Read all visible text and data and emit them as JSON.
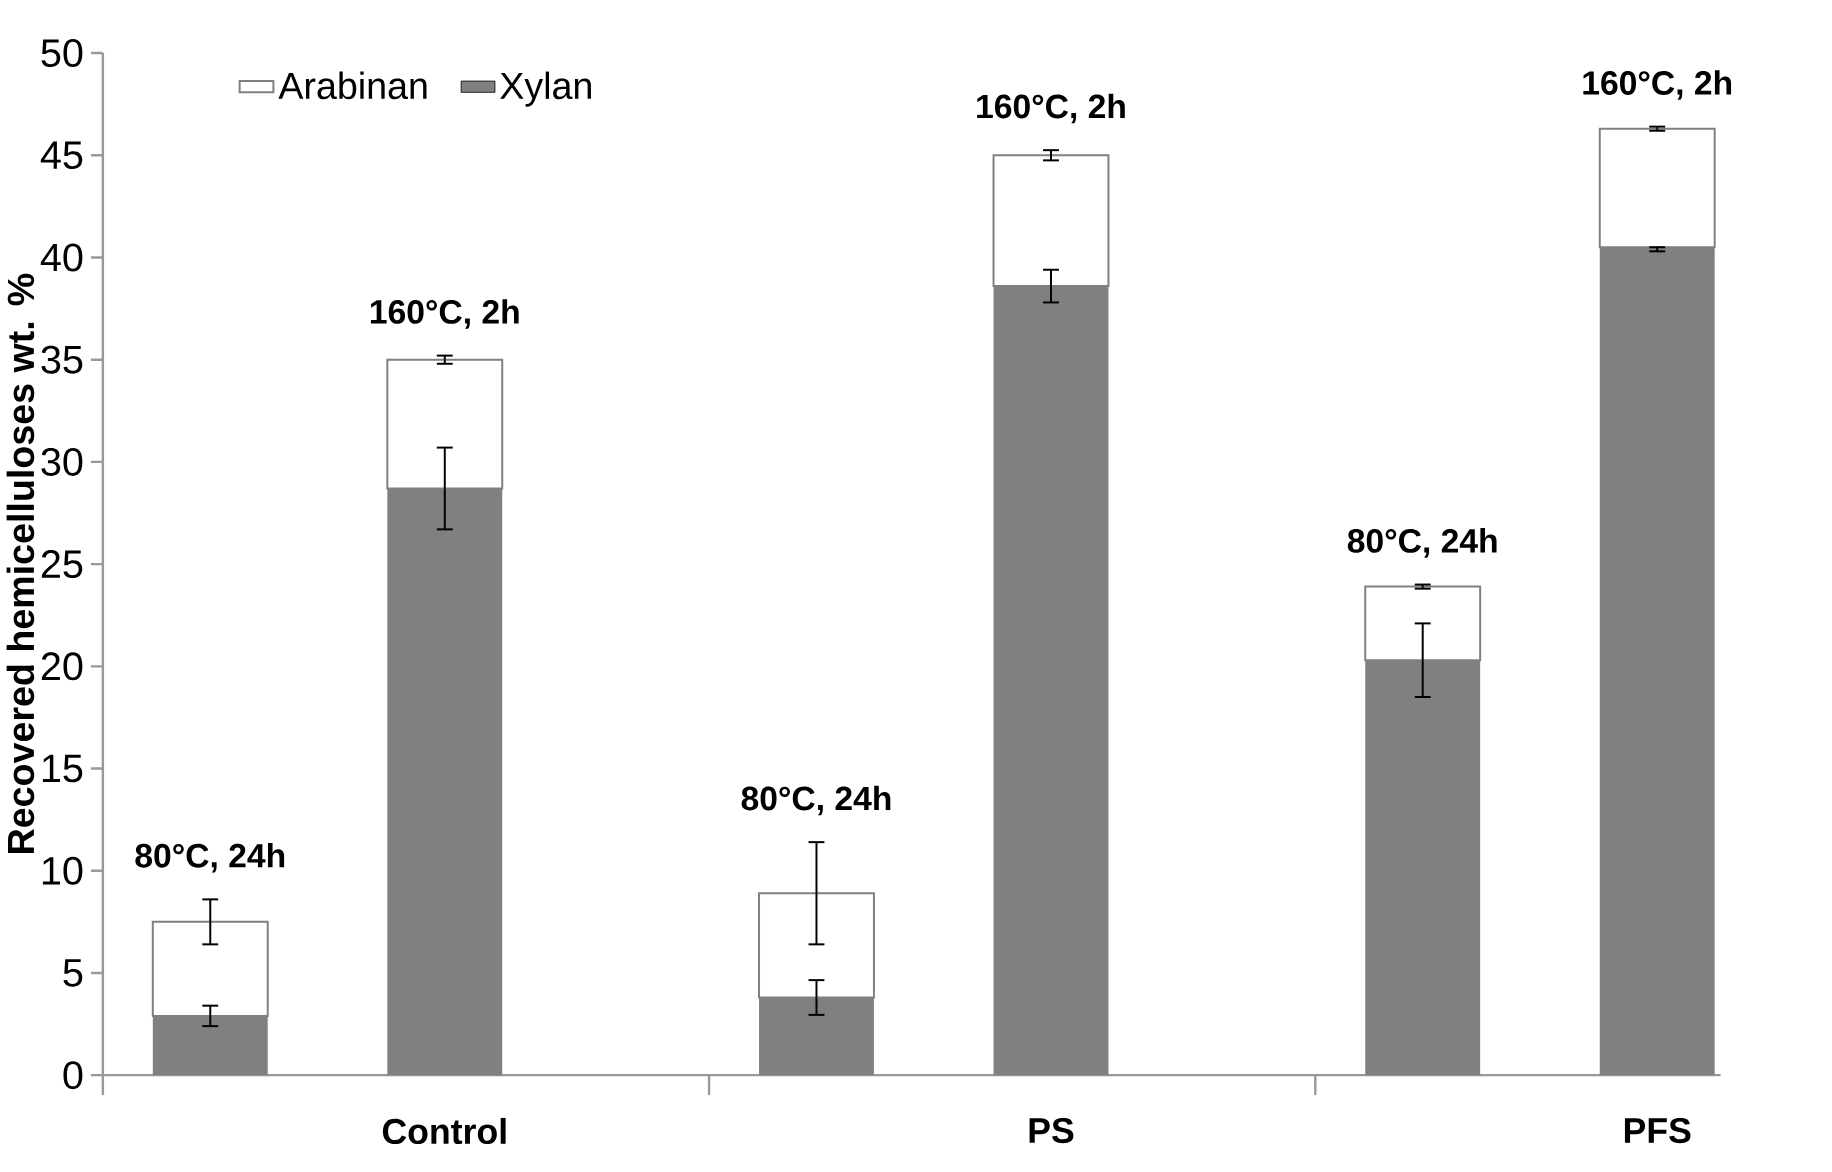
{
  "chart_data": {
    "type": "bar",
    "stacked": true,
    "ylabel": "Recovered hemicelluloses wt. %",
    "categories": [
      null,
      "Control",
      null,
      "PS",
      null,
      "PFS"
    ],
    "series": [
      {
        "name": "Xylan",
        "color": "#808080",
        "values": [
          2.9,
          28.7,
          3.8,
          38.6,
          20.3,
          40.5
        ],
        "errors": [
          0.5,
          2.0,
          0.85,
          0.8,
          1.8,
          [
            40.3,
            40.5
          ]
        ]
      },
      {
        "name": "Arabinan",
        "color": "#ffffff",
        "values": [
          4.6,
          6.3,
          5.1,
          6.4,
          3.6,
          5.8
        ],
        "errors": [
          1.1,
          0.2,
          2.5,
          0.25,
          0.1,
          0.1
        ]
      }
    ],
    "annotations": [
      "80°C, 24h",
      "160°C, 2h",
      "80°C, 24h",
      "160°C, 2h",
      "80°C, 24h",
      "160°C, 2h"
    ],
    "ylim": [
      0,
      50
    ],
    "yticks": [
      0,
      5,
      10,
      15,
      20,
      25,
      30,
      35,
      40,
      45,
      50
    ],
    "legend": "top left",
    "grid": false
  }
}
